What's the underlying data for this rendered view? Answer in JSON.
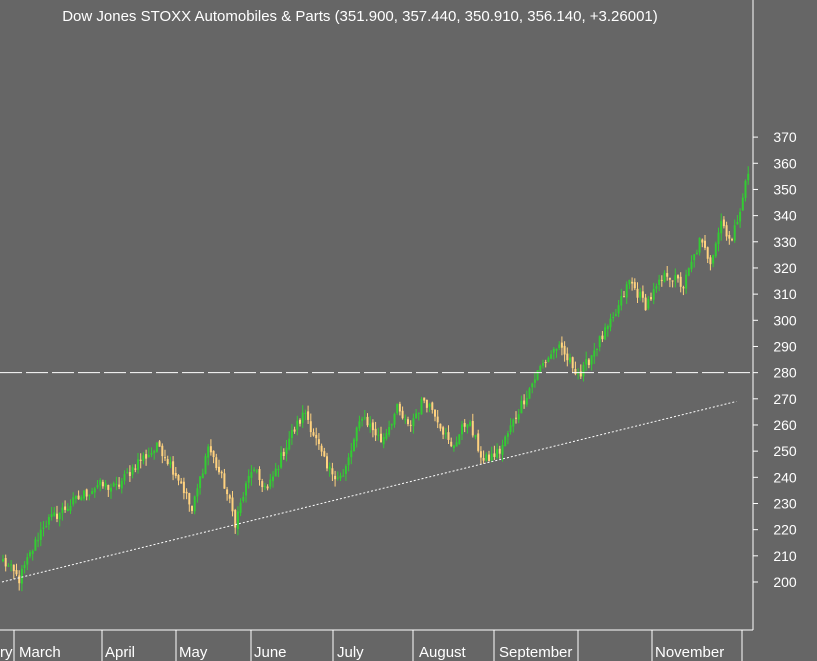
{
  "chart_data": {
    "type": "candlestick",
    "title": "Dow Jones STOXX Automobiles & Parts (351.900, 357.440, 350.910, 356.140, +3.26001)",
    "ylim": [
      187,
      378
    ],
    "y_ticks": [
      370,
      360,
      350,
      340,
      330,
      320,
      310,
      300,
      290,
      280,
      270,
      260,
      250,
      240,
      230,
      220,
      210,
      200
    ],
    "x_tick_labels": [
      "ry",
      "March",
      "April",
      "May",
      "June",
      "July",
      "August",
      "September",
      "November"
    ],
    "horizontal_line": {
      "value": 280,
      "style": "dashed"
    },
    "trend_line": {
      "style": "dotted",
      "start": {
        "index": 0,
        "value": 200
      },
      "end": {
        "index": 272,
        "value": 269
      }
    },
    "colors": {
      "background": "#666666",
      "up": "#33cc33",
      "down": "#ffd27f",
      "axis_text": "#ffffff",
      "trend": "#ffffff",
      "grid": "#ffffff"
    },
    "anchors": [
      {
        "i": 0,
        "v": 208
      },
      {
        "i": 6,
        "v": 201
      },
      {
        "i": 15,
        "v": 222
      },
      {
        "i": 28,
        "v": 232
      },
      {
        "i": 35,
        "v": 237
      },
      {
        "i": 42,
        "v": 236
      },
      {
        "i": 50,
        "v": 246
      },
      {
        "i": 58,
        "v": 252
      },
      {
        "i": 66,
        "v": 238
      },
      {
        "i": 70,
        "v": 227
      },
      {
        "i": 76,
        "v": 252
      },
      {
        "i": 82,
        "v": 237
      },
      {
        "i": 86,
        "v": 223
      },
      {
        "i": 92,
        "v": 243
      },
      {
        "i": 98,
        "v": 235
      },
      {
        "i": 106,
        "v": 255
      },
      {
        "i": 112,
        "v": 265
      },
      {
        "i": 120,
        "v": 243
      },
      {
        "i": 126,
        "v": 240
      },
      {
        "i": 133,
        "v": 264
      },
      {
        "i": 140,
        "v": 254
      },
      {
        "i": 146,
        "v": 266
      },
      {
        "i": 150,
        "v": 259
      },
      {
        "i": 156,
        "v": 270
      },
      {
        "i": 160,
        "v": 265
      },
      {
        "i": 166,
        "v": 251
      },
      {
        "i": 172,
        "v": 262
      },
      {
        "i": 178,
        "v": 246
      },
      {
        "i": 184,
        "v": 250
      },
      {
        "i": 192,
        "v": 268
      },
      {
        "i": 199,
        "v": 282
      },
      {
        "i": 205,
        "v": 290
      },
      {
        "i": 210,
        "v": 284
      },
      {
        "i": 214,
        "v": 279
      },
      {
        "i": 219,
        "v": 289
      },
      {
        "i": 226,
        "v": 300
      },
      {
        "i": 232,
        "v": 315
      },
      {
        "i": 238,
        "v": 306
      },
      {
        "i": 246,
        "v": 318
      },
      {
        "i": 252,
        "v": 313
      },
      {
        "i": 258,
        "v": 330
      },
      {
        "i": 262,
        "v": 323
      },
      {
        "i": 266,
        "v": 338
      },
      {
        "i": 270,
        "v": 330
      },
      {
        "i": 274,
        "v": 348
      },
      {
        "i": 276,
        "v": 356
      }
    ]
  }
}
